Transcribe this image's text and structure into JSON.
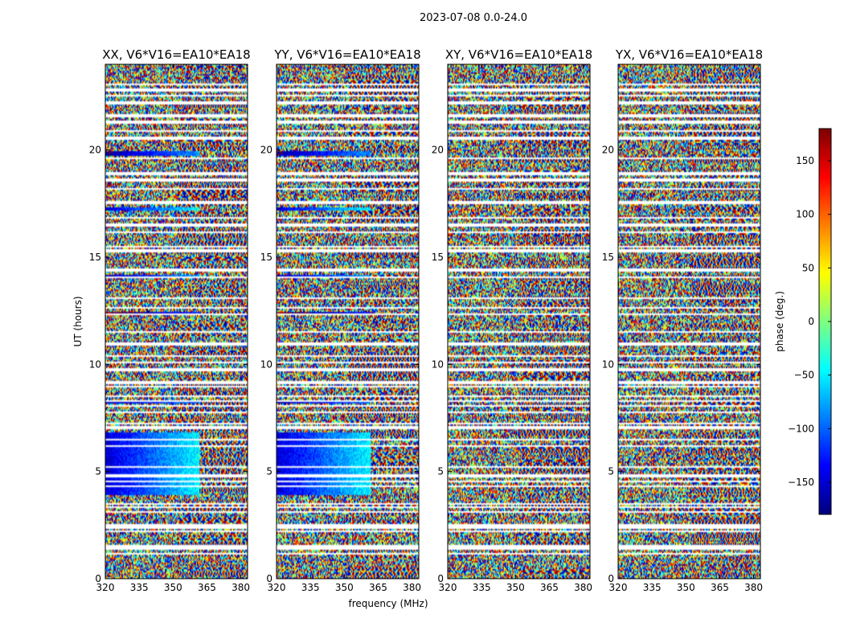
{
  "chart_data": {
    "type": "heatmap",
    "suptitle": "2023-07-08 0.0-24.0",
    "xlabel": "frequency (MHz)",
    "ylabel": "UT (hours)",
    "xlim": [
      320,
      383
    ],
    "ylim": [
      0,
      24
    ],
    "x_ticks": [
      "320",
      "335",
      "350",
      "365",
      "380"
    ],
    "x_tick_values": [
      320,
      335,
      350,
      365,
      380
    ],
    "y_ticks": [
      "0",
      "5",
      "10",
      "15",
      "20"
    ],
    "y_tick_values": [
      0,
      5,
      10,
      15,
      20
    ],
    "panels": [
      {
        "title": "XX, V6*V16=EA10*EA18",
        "pol": "XX",
        "coherent": true
      },
      {
        "title": "YY, V6*V16=EA10*EA18",
        "pol": "YY",
        "coherent": true
      },
      {
        "title": "XY, V6*V16=EA10*EA18",
        "pol": "XY",
        "coherent": false
      },
      {
        "title": "YX, V6*V16=EA10*EA18",
        "pol": "YX",
        "coherent": false
      }
    ],
    "flagged_ut_hours": [
      1.15,
      1.4,
      1.5,
      2.2,
      2.4,
      2.5,
      3.1,
      3.35,
      3.5,
      4.3,
      4.55,
      4.8,
      5.2,
      6.2,
      6.5,
      7.05,
      7.25,
      7.75,
      8.05,
      8.3,
      8.5,
      8.95,
      9.15,
      9.75,
      10.1,
      10.4,
      10.95,
      11.5,
      12.35,
      12.65,
      13.1,
      14.05,
      14.4,
      15.3,
      15.5,
      16.15,
      16.5,
      16.85,
      17.55,
      18.2,
      18.6,
      18.9,
      19.6,
      20.55,
      20.9,
      21.3,
      21.6,
      22.2,
      22.55,
      22.8,
      23.05
    ],
    "coherent_bands": [
      {
        "ut_start": 3.9,
        "ut_end": 6.8,
        "phase_deg": -150,
        "phase_slope": 2.4
      },
      {
        "ut_start": 8.2,
        "ut_end": 8.3,
        "phase_deg": -160,
        "phase_slope": 1.5
      },
      {
        "ut_start": 12.3,
        "ut_end": 12.45,
        "phase_deg": 170,
        "phase_slope": 1.5
      },
      {
        "ut_start": 14.05,
        "ut_end": 14.2,
        "phase_deg": -160,
        "phase_slope": 2.0
      },
      {
        "ut_start": 17.15,
        "ut_end": 17.35,
        "phase_deg": -150,
        "phase_slope": 2.5
      },
      {
        "ut_start": 19.75,
        "ut_end": 19.95,
        "phase_deg": -170,
        "phase_slope": 2.0
      }
    ],
    "colorbar": {
      "label": "phase (deg.)",
      "range": [
        -180,
        180
      ],
      "ticks": [
        "150",
        "100",
        "50",
        "0",
        "−50",
        "−100",
        "−150"
      ],
      "tick_values": [
        150,
        100,
        50,
        0,
        -50,
        -100,
        -150
      ],
      "colormap": "jet"
    }
  }
}
